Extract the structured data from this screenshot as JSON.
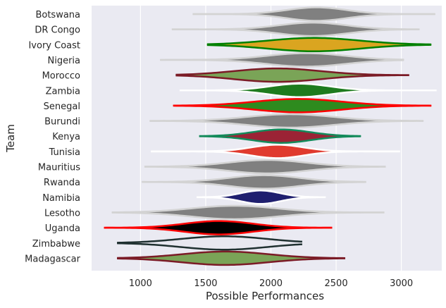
{
  "chart_data": {
    "type": "violin",
    "xlabel": "Possible Performances",
    "ylabel": "Team",
    "xlim": [
      625,
      3310
    ],
    "xticks": [
      1000,
      1500,
      2000,
      2500,
      3000
    ],
    "grid": true,
    "categories": [
      "Botswana",
      "DR Congo",
      "Ivory Coast",
      "Nigeria",
      "Morocco",
      "Zambia",
      "Senegal",
      "Burundi",
      "Kenya",
      "Tunisia",
      "Mauritius",
      "Rwanda",
      "Namibia",
      "Lesotho",
      "Uganda",
      "Zimbabwe",
      "Madagascar"
    ],
    "series": [
      {
        "team": "Botswana",
        "min": 1400,
        "max": 3260,
        "mode": 2350,
        "spread": 230,
        "fill": "#808080",
        "line": "#d3d3d3"
      },
      {
        "team": "DR Congo",
        "min": 1240,
        "max": 3140,
        "mode": 2320,
        "spread": 260,
        "fill": "#808080",
        "line": "#d3d3d3"
      },
      {
        "team": "Ivory Coast",
        "min": 1510,
        "max": 3230,
        "mode": 2330,
        "spread": 350,
        "fill": "#daa520",
        "line": "#008000"
      },
      {
        "team": "Nigeria",
        "min": 1150,
        "max": 3020,
        "mode": 2270,
        "spread": 300,
        "fill": "#808080",
        "line": "#d3d3d3"
      },
      {
        "team": "Morocco",
        "min": 1270,
        "max": 3060,
        "mode": 2050,
        "spread": 330,
        "fill": "#7aa457",
        "line": "#7b1b26"
      },
      {
        "team": "Zambia",
        "min": 1300,
        "max": 3270,
        "mode": 2220,
        "spread": 230,
        "fill": "#1e7b1e",
        "line": "#ffffff"
      },
      {
        "team": "Senegal",
        "min": 1250,
        "max": 3230,
        "mode": 2210,
        "spread": 330,
        "fill": "#2e8b1e",
        "line": "#ff0000"
      },
      {
        "team": "Burundi",
        "min": 1070,
        "max": 3170,
        "mode": 2150,
        "spread": 330,
        "fill": "#808080",
        "line": "#d3d3d3"
      },
      {
        "team": "Kenya",
        "min": 1450,
        "max": 2690,
        "mode": 2080,
        "spread": 220,
        "fill": "#9b2335",
        "line": "#138a5a"
      },
      {
        "team": "Tunisia",
        "min": 1080,
        "max": 2990,
        "mode": 2050,
        "spread": 200,
        "fill": "#e03a2e",
        "line": "#ffffff"
      },
      {
        "team": "Mauritius",
        "min": 1030,
        "max": 2880,
        "mode": 1970,
        "spread": 300,
        "fill": "#808080",
        "line": "#d3d3d3"
      },
      {
        "team": "Rwanda",
        "min": 1010,
        "max": 2730,
        "mode": 1950,
        "spread": 270,
        "fill": "#808080",
        "line": "#d3d3d3"
      },
      {
        "team": "Namibia",
        "min": 1430,
        "max": 2420,
        "mode": 1920,
        "spread": 150,
        "fill": "#1f1f6f",
        "line": "#ffffff"
      },
      {
        "team": "Lesotho",
        "min": 780,
        "max": 2870,
        "mode": 1720,
        "spread": 330,
        "fill": "#808080",
        "line": "#d3d3d3"
      },
      {
        "team": "Uganda",
        "min": 720,
        "max": 2470,
        "mode": 1600,
        "spread": 260,
        "fill": "#000000",
        "line": "#ff0000"
      },
      {
        "team": "Zimbabwe",
        "min": 820,
        "max": 2240,
        "mode": 1640,
        "spread": 330,
        "fill": "#e8e8f0",
        "line": "#1f3030"
      },
      {
        "team": "Madagascar",
        "min": 820,
        "max": 2570,
        "mode": 1650,
        "spread": 330,
        "fill": "#7aa457",
        "line": "#7b1b26"
      }
    ]
  }
}
